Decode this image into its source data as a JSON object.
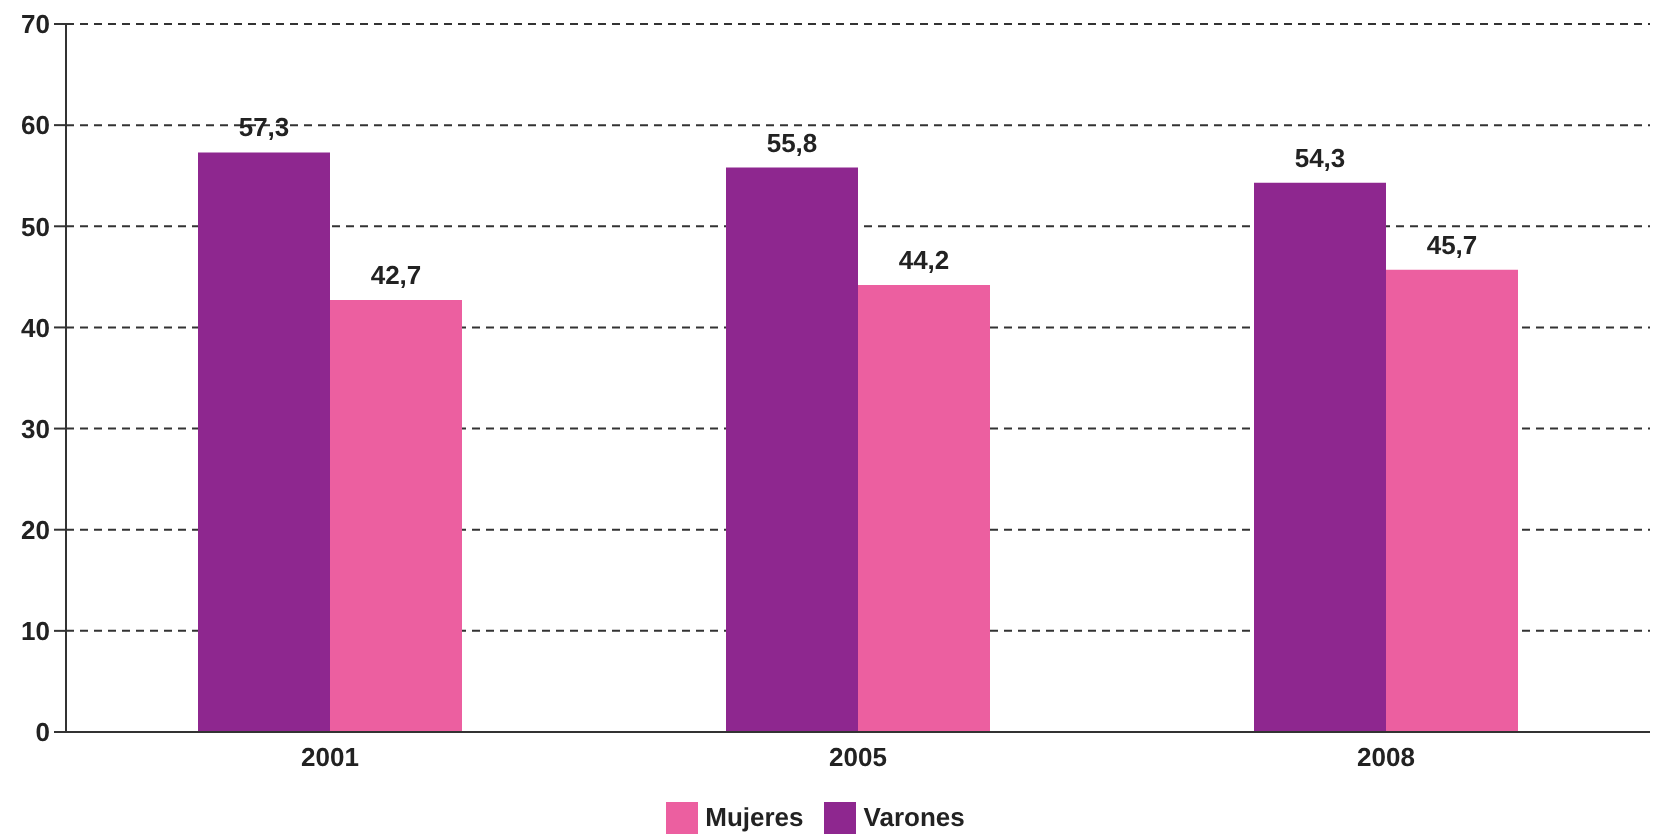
{
  "chart_data": {
    "type": "bar",
    "categories": [
      "2001",
      "2005",
      "2008"
    ],
    "series": [
      {
        "name": "Varones",
        "color": "#8e278f",
        "values": [
          57.3,
          55.8,
          54.3
        ],
        "value_labels": [
          "57,3",
          "55,8",
          "54,3"
        ]
      },
      {
        "name": "Mujeres",
        "color": "#ec5fa0",
        "values": [
          42.7,
          44.2,
          45.7
        ],
        "value_labels": [
          "42,7",
          "44,2",
          "45,7"
        ]
      }
    ],
    "ylim": [
      0,
      70
    ],
    "yticks": [
      0,
      10,
      20,
      30,
      40,
      50,
      60,
      70
    ],
    "grid": "y",
    "legend": "bottom"
  }
}
